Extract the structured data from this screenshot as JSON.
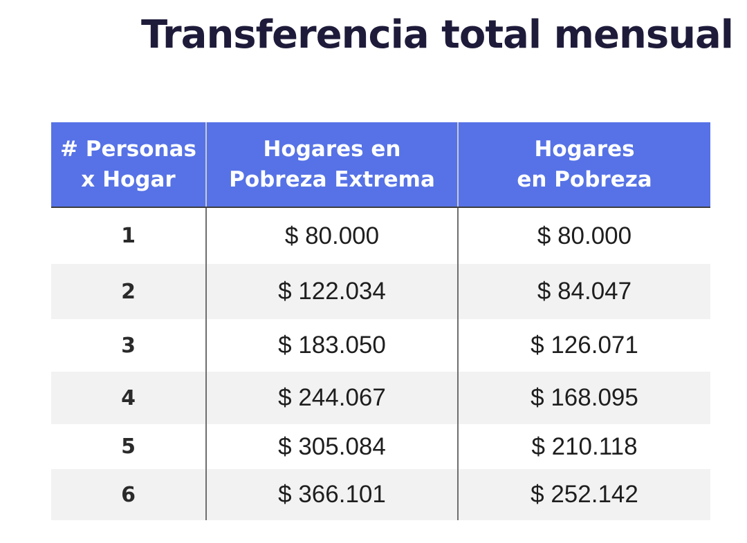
{
  "title": "Transferencia total mensual",
  "table": {
    "headers": [
      [
        "# Personas",
        "x Hogar"
      ],
      [
        "Hogares en",
        "Pobreza Extrema"
      ],
      [
        "Hogares",
        "en Pobreza"
      ]
    ],
    "rows": [
      [
        "1",
        "$ 80.000",
        "$ 80.000"
      ],
      [
        "2",
        "$ 122.034",
        "$ 84.047"
      ],
      [
        "3",
        "$ 183.050",
        "$ 126.071"
      ],
      [
        "4",
        "$ 244.067",
        "$ 168.095"
      ],
      [
        "5",
        "$ 305.084",
        "$ 210.118"
      ],
      [
        "6",
        "$ 366.101",
        "$ 252.142"
      ]
    ]
  },
  "colors": {
    "header_background": "#5672e6",
    "header_text": "#ffffff",
    "title_text": "#1e1b3a",
    "stripe_row": "#f2f2f3"
  }
}
